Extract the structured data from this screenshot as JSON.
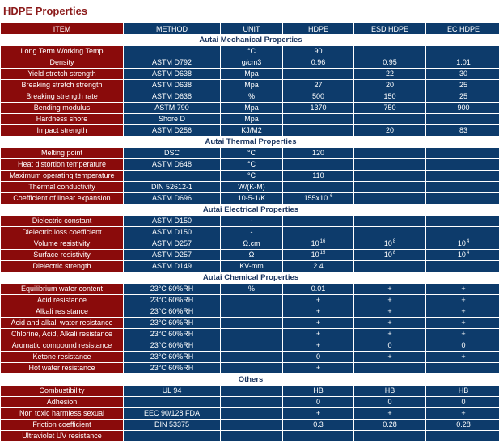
{
  "title": "HDPE Properties",
  "colors": {
    "item_bg": "#8a0b0b",
    "value_bg": "#0d3b6b",
    "section_text": "#1a3560",
    "title_text": "#8b1a1a"
  },
  "columns": [
    "ITEM",
    "METHOD",
    "UNIT",
    "HDPE",
    "ESD HDPE",
    "EC HDPE"
  ],
  "sections": [
    {
      "title": "Autai Mechanical Properties",
      "rows": [
        [
          "Long Term Working Temp",
          "",
          "°C",
          "90",
          "",
          ""
        ],
        [
          "Density",
          "ASTM D792",
          "g/cm3",
          "0.96",
          "0.95",
          "1.01"
        ],
        [
          "Yield stretch strength",
          "ASTM D638",
          "Mpa",
          "",
          "22",
          "30"
        ],
        [
          "Breaking stretch strength",
          "ASTM D638",
          "Mpa",
          "27",
          "20",
          "25"
        ],
        [
          "Breaking strength rate",
          "ASTM D638",
          "%",
          "500",
          "150",
          "25"
        ],
        [
          "Bending modulus",
          "ASTM 790",
          "Mpa",
          "1370",
          "750",
          "900"
        ],
        [
          "Hardness shore",
          "Shore D",
          "Mpa",
          "",
          "",
          ""
        ],
        [
          "Impact strength",
          "ASTM D256",
          "KJ/M2",
          "",
          "20",
          "83"
        ]
      ]
    },
    {
      "title": "Autai Thermal Properties",
      "rows": [
        [
          "Melting point",
          "DSC",
          "°C",
          "120",
          "",
          ""
        ],
        [
          "Heat distortion temperature",
          "ASTM D648",
          "°C",
          "",
          "",
          ""
        ],
        [
          "Maximum operating temperature",
          "",
          "°C",
          "110",
          "",
          ""
        ],
        [
          "Thermal conductivity",
          "DIN 52612-1",
          "W/(K-M)",
          "",
          "",
          ""
        ],
        [
          "Coefficient of linear expansion",
          "ASTM D696",
          "10-5-1/K",
          {
            "base": "155x10",
            "sup": "-6"
          },
          "",
          ""
        ]
      ]
    },
    {
      "title": "Autai Electrical Properties",
      "rows": [
        [
          "Dielectric constant",
          "ASTM D150",
          "-",
          "",
          "",
          ""
        ],
        [
          "Dielectric loss coefficient",
          "ASTM D150",
          "-",
          "",
          "",
          ""
        ],
        [
          "Volume resistivity",
          "ASTM D257",
          "Ω.cm",
          {
            "base": "10",
            "sup": "16"
          },
          {
            "base": "10",
            "sup": "8"
          },
          {
            "base": "10",
            "sup": "4"
          }
        ],
        [
          "Surface resistivity",
          "ASTM D257",
          "Ω",
          {
            "base": "10",
            "sup": "15"
          },
          {
            "base": "10",
            "sup": "8"
          },
          {
            "base": "10",
            "sup": "4"
          }
        ],
        [
          "Dielectric strength",
          "ASTM D149",
          "KV-mm",
          "2.4",
          "",
          ""
        ]
      ]
    },
    {
      "title": "Autai Chemical Properties",
      "rows": [
        [
          "Equilibrium water content",
          "23°C 60%RH",
          "%",
          "0.01",
          "+",
          "+"
        ],
        [
          "Acid resistance",
          "23°C 60%RH",
          "",
          "+",
          "+",
          "+"
        ],
        [
          "Alkali resistance",
          "23°C 60%RH",
          "",
          "+",
          "+",
          "+"
        ],
        [
          "Acid and alkali water resistance",
          "23°C 60%RH",
          "",
          "+",
          "+",
          "+"
        ],
        [
          "Chlorine, Acid, Alkali resistance",
          "23°C 60%RH",
          "",
          "+",
          "+",
          "+"
        ],
        [
          "Aromatic compound resistance",
          "23°C 60%RH",
          "",
          "+",
          "0",
          "0"
        ],
        [
          "Ketone resistance",
          "23°C 60%RH",
          "",
          "0",
          "+",
          "+"
        ],
        [
          "Hot water resistance",
          "23°C 60%RH",
          "",
          "+",
          "",
          ""
        ]
      ]
    },
    {
      "title": "Others",
      "rows": [
        [
          "Combustibility",
          "UL 94",
          "",
          "HB",
          "HB",
          "HB"
        ],
        [
          "Adhesion",
          "",
          "",
          "0",
          "0",
          "0"
        ],
        [
          "Non toxic harmless sexual",
          "EEC 90/128 FDA",
          "",
          "+",
          "+",
          "+"
        ],
        [
          "Friction coefficient",
          "DIN 53375",
          "",
          "0.3",
          "0.28",
          "0.28"
        ],
        [
          "Ultraviolet UV resistance",
          "",
          "",
          "",
          "",
          ""
        ]
      ]
    }
  ]
}
